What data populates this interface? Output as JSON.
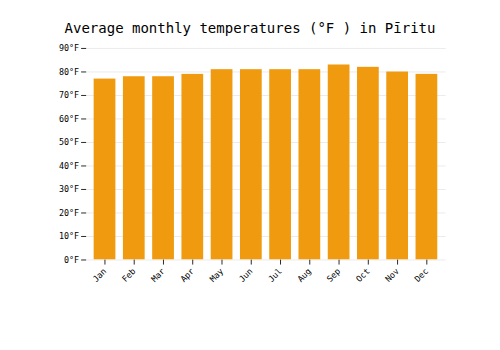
{
  "chart_data": {
    "type": "bar",
    "title": "Average monthly temperatures (°F ) in Pīritu",
    "categories": [
      "Jan",
      "Feb",
      "Mar",
      "Apr",
      "May",
      "Jun",
      "Jul",
      "Aug",
      "Sep",
      "Oct",
      "Nov",
      "Dec"
    ],
    "values": [
      77,
      78,
      78,
      79,
      81,
      81,
      81,
      81,
      83,
      82,
      80,
      79
    ],
    "color": "#F09A10",
    "ylim": [
      0,
      90
    ],
    "yticks": [
      {
        "value": 0,
        "label": "0°F"
      },
      {
        "value": 10,
        "label": "10°F"
      },
      {
        "value": 20,
        "label": "20°F"
      },
      {
        "value": 30,
        "label": "30°F"
      },
      {
        "value": 40,
        "label": "40°F"
      },
      {
        "value": 50,
        "label": "50°F"
      },
      {
        "value": 60,
        "label": "60°F"
      },
      {
        "value": 70,
        "label": "70°F"
      },
      {
        "value": 80,
        "label": "80°F"
      },
      {
        "value": 90,
        "label": "90°F"
      }
    ],
    "grid": true
  }
}
